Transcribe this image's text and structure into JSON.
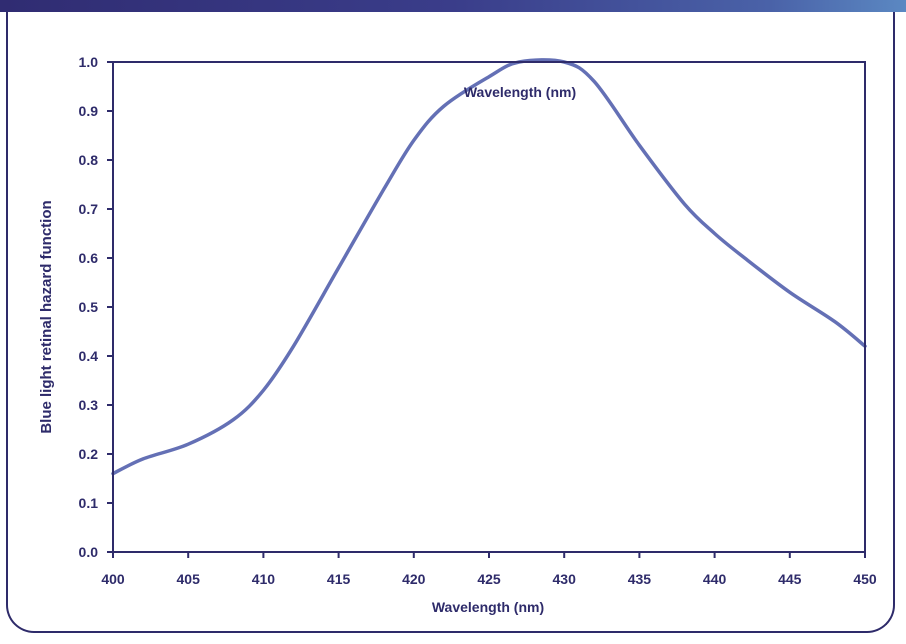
{
  "chart_data": {
    "type": "line",
    "title": "Wavelength (nm)",
    "xlabel": "Wavelength (nm)",
    "ylabel": "Blue light retinal hazard function",
    "xlim": [
      400,
      450
    ],
    "ylim": [
      0.0,
      1.0
    ],
    "x_ticks": [
      "400",
      "405",
      "410",
      "415",
      "420",
      "425",
      "430",
      "435",
      "440",
      "445",
      "450"
    ],
    "y_ticks": [
      "0.0",
      "0.1",
      "0.2",
      "0.3",
      "0.4",
      "0.5",
      "0.6",
      "0.7",
      "0.8",
      "0.9",
      "1.0"
    ],
    "grid": false,
    "line_color": "#6470b5",
    "axis_color": "#2e2b6a",
    "series": [
      {
        "x": [
          400,
          402,
          405,
          408,
          410,
          412,
          415,
          418,
          420,
          422,
          425,
          427,
          430,
          432,
          435,
          438,
          440,
          442,
          445,
          448,
          450
        ],
        "values": [
          0.16,
          0.19,
          0.22,
          0.27,
          0.33,
          0.42,
          0.58,
          0.74,
          0.84,
          0.91,
          0.97,
          1.0,
          1.0,
          0.96,
          0.83,
          0.71,
          0.65,
          0.6,
          0.53,
          0.47,
          0.42
        ]
      }
    ]
  }
}
